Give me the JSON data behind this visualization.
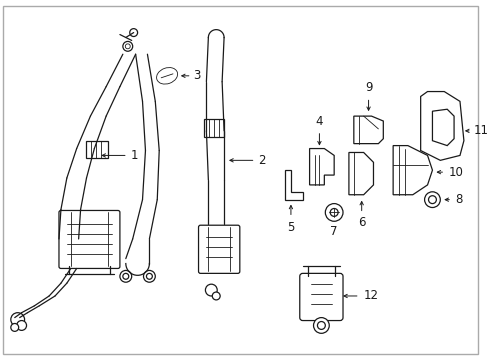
{
  "background_color": "#ffffff",
  "line_color": "#1a1a1a",
  "border_color": "#aaaaaa",
  "fig_width": 4.89,
  "fig_height": 3.6,
  "dpi": 100,
  "font_size": 8.5
}
